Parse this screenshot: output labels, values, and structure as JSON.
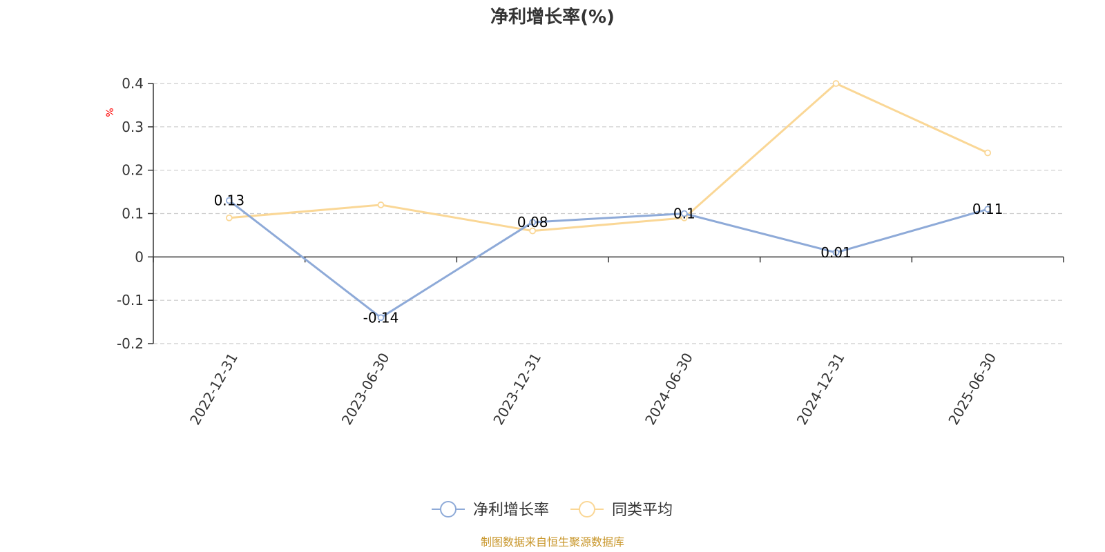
{
  "chart_data": {
    "type": "line",
    "title": "净利增长率(%)",
    "ylabel": "%",
    "categories": [
      "2022-12-31",
      "2023-06-30",
      "2023-12-31",
      "2024-06-30",
      "2024-12-31",
      "2025-06-30"
    ],
    "yticks": [
      "0.4",
      "0.3",
      "0.2",
      "0.1",
      "0",
      "-0.1",
      "-0.2"
    ],
    "ylim": [
      -0.2,
      0.4
    ],
    "grid": true,
    "legend_position": "bottom-center",
    "series": [
      {
        "name": "净利增长率",
        "color": "#8eaad8",
        "values": [
          0.13,
          -0.14,
          0.08,
          0.1,
          0.01,
          0.11
        ],
        "labels": [
          "0.13",
          "-0.14",
          "0.08",
          "0.1",
          "0.01",
          "0.11"
        ]
      },
      {
        "name": "同类平均",
        "color": "#fad796",
        "values": [
          0.09,
          0.12,
          0.06,
          0.09,
          0.4,
          0.24
        ]
      }
    ]
  },
  "source": "制图数据来自恒生聚源数据库"
}
